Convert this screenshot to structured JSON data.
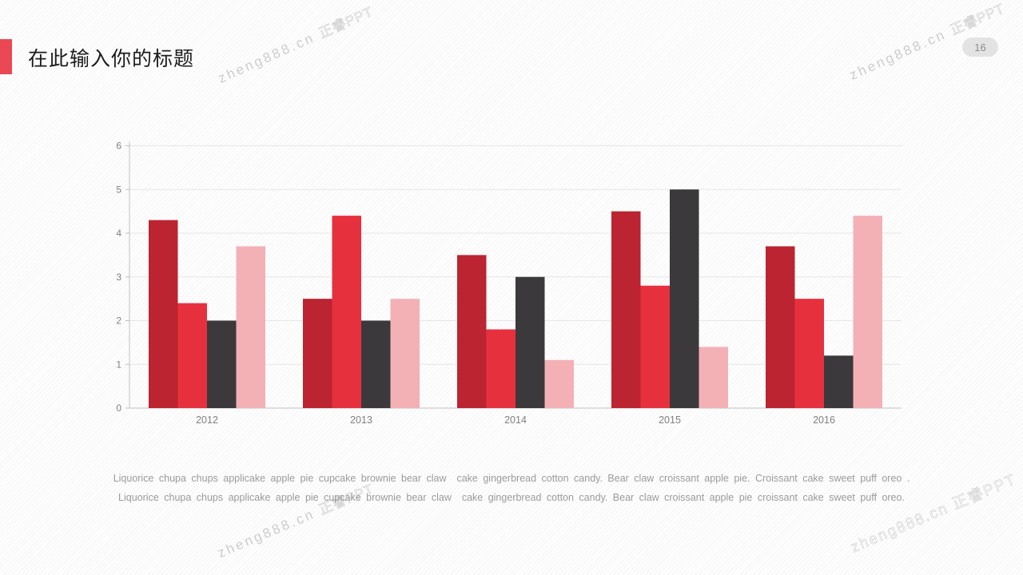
{
  "slide": {
    "title": "在此输入你的标题",
    "page_number": "16",
    "accent_color": "#e94854"
  },
  "watermark": {
    "site": "zheng888.cn",
    "brand": "正睿PPT",
    "full": "zheng888.cn 正睿PPT"
  },
  "caption": {
    "line1": "Liquorice chupa chups applicake apple pie cupcake brownie bear claw  cake gingerbread cotton candy. Bear claw croissant apple pie. Croissant cake sweet puff oreo .",
    "line2": "Liquorice chupa chups applicake apple pie cupcake brownie bear claw  cake gingerbread cotton candy. Bear claw croissant apple pie croissant cake sweet puff oreo."
  },
  "chart_data": {
    "type": "bar",
    "categories": [
      "2012",
      "2013",
      "2014",
      "2015",
      "2016"
    ],
    "series": [
      {
        "name": "series-dark-red",
        "color": "#bb2430",
        "values": [
          4.3,
          2.5,
          3.5,
          4.5,
          3.7
        ]
      },
      {
        "name": "series-red",
        "color": "#e7303e",
        "values": [
          2.4,
          4.4,
          1.8,
          2.8,
          2.5
        ]
      },
      {
        "name": "series-dark-gray",
        "color": "#3b393b",
        "values": [
          2.0,
          2.0,
          3.0,
          5.0,
          1.2
        ]
      },
      {
        "name": "series-pink",
        "color": "#f3b1b6",
        "values": [
          3.7,
          2.5,
          1.1,
          1.4,
          4.4
        ]
      }
    ],
    "title": "",
    "xlabel": "",
    "ylabel": "",
    "ylim": [
      0,
      6
    ],
    "yticks": [
      0,
      1,
      2,
      3,
      4,
      5,
      6
    ],
    "grid": true,
    "legend_position": "none",
    "axis_color": "#c0c0c0",
    "grid_color": "#e6e6e6",
    "tick_label_color": "#808080"
  }
}
